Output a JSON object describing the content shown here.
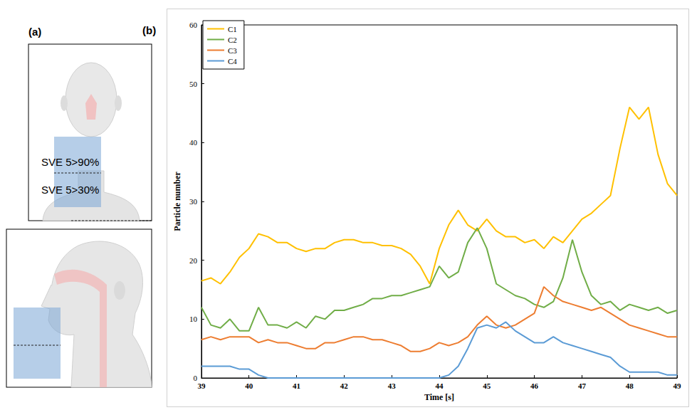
{
  "panel_labels": [
    "(a)",
    "(b)"
  ],
  "diagram": {
    "zone_labels": [
      "SVE 5>90%",
      "SVE 5>30%"
    ]
  },
  "chart_data": {
    "type": "line",
    "x_label": "Time [s]",
    "y_label": "Particle number",
    "x": [
      39.0,
      39.2,
      39.4,
      39.6,
      39.8,
      40.0,
      40.2,
      40.4,
      40.6,
      40.8,
      41.0,
      41.2,
      41.4,
      41.6,
      41.8,
      42.0,
      42.2,
      42.4,
      42.6,
      42.8,
      43.0,
      43.2,
      43.4,
      43.6,
      43.8,
      44.0,
      44.2,
      44.4,
      44.6,
      44.8,
      45.0,
      45.2,
      45.4,
      45.6,
      45.8,
      46.0,
      46.2,
      46.4,
      46.6,
      46.8,
      47.0,
      47.2,
      47.4,
      47.6,
      47.8,
      48.0,
      48.2,
      48.4,
      48.6,
      48.8,
      49.0
    ],
    "series": [
      {
        "name": "C1",
        "color": "#ffc000",
        "values": [
          16.5,
          17,
          16,
          18,
          20.5,
          22,
          24.5,
          24,
          23,
          23,
          22,
          21.5,
          22,
          22,
          23,
          23.5,
          23.5,
          23,
          23,
          22.5,
          22.5,
          22,
          21,
          19,
          16,
          22,
          26,
          28.5,
          26,
          25,
          27,
          25,
          24,
          24,
          23,
          23.5,
          22,
          24,
          23,
          25,
          27,
          28,
          29.5,
          31,
          39,
          46,
          44,
          46,
          38,
          33,
          31
        ]
      },
      {
        "name": "C2",
        "color": "#70ad47",
        "values": [
          12,
          9,
          8.5,
          10,
          8,
          8,
          12,
          9,
          9,
          8.5,
          9.5,
          8.5,
          10.5,
          10,
          11.5,
          11.5,
          12,
          12.5,
          13.5,
          13.5,
          14,
          14,
          14.5,
          15,
          15.5,
          19,
          17,
          18,
          23,
          25.5,
          22,
          16,
          15,
          14,
          13.5,
          12.5,
          12,
          13,
          17,
          23.5,
          18,
          14,
          12.5,
          13,
          11.5,
          12.5,
          12,
          11.5,
          12,
          11,
          11.5
        ]
      },
      {
        "name": "C3",
        "color": "#ed7d31",
        "values": [
          6.5,
          7,
          6.5,
          7,
          7,
          7,
          6,
          6.5,
          6,
          6,
          5.5,
          5,
          5,
          6,
          6,
          6.5,
          7,
          7,
          6.5,
          6.5,
          6,
          5.5,
          4.5,
          4.5,
          5,
          6,
          5.5,
          6,
          7,
          9,
          10.5,
          9,
          8.5,
          9,
          10,
          11,
          15.5,
          14,
          13,
          12.5,
          12,
          11.5,
          12,
          11,
          10,
          9,
          8.5,
          8,
          7.5,
          7,
          7
        ]
      },
      {
        "name": "C4",
        "color": "#5b9bd5",
        "values": [
          2,
          2,
          2,
          2,
          1.5,
          1.5,
          0.5,
          0,
          0,
          0,
          0,
          0,
          0,
          0,
          0,
          0,
          0,
          0,
          0,
          0,
          0,
          0,
          0,
          0,
          0,
          0,
          0.5,
          2,
          5,
          8.5,
          9,
          8.5,
          9.5,
          8,
          7,
          6,
          6,
          7,
          6,
          5.5,
          5,
          4.5,
          4,
          3.5,
          2,
          1,
          1,
          1,
          1,
          0.5,
          0.5
        ]
      }
    ],
    "xlim": [
      39,
      49
    ],
    "xticks": [
      39,
      40,
      41,
      42,
      43,
      44,
      45,
      46,
      47,
      48,
      49
    ],
    "ylim": [
      0,
      60
    ],
    "yticks": [
      0,
      10,
      20,
      30,
      40,
      50,
      60
    ],
    "grid": false,
    "legend": "upper left"
  }
}
